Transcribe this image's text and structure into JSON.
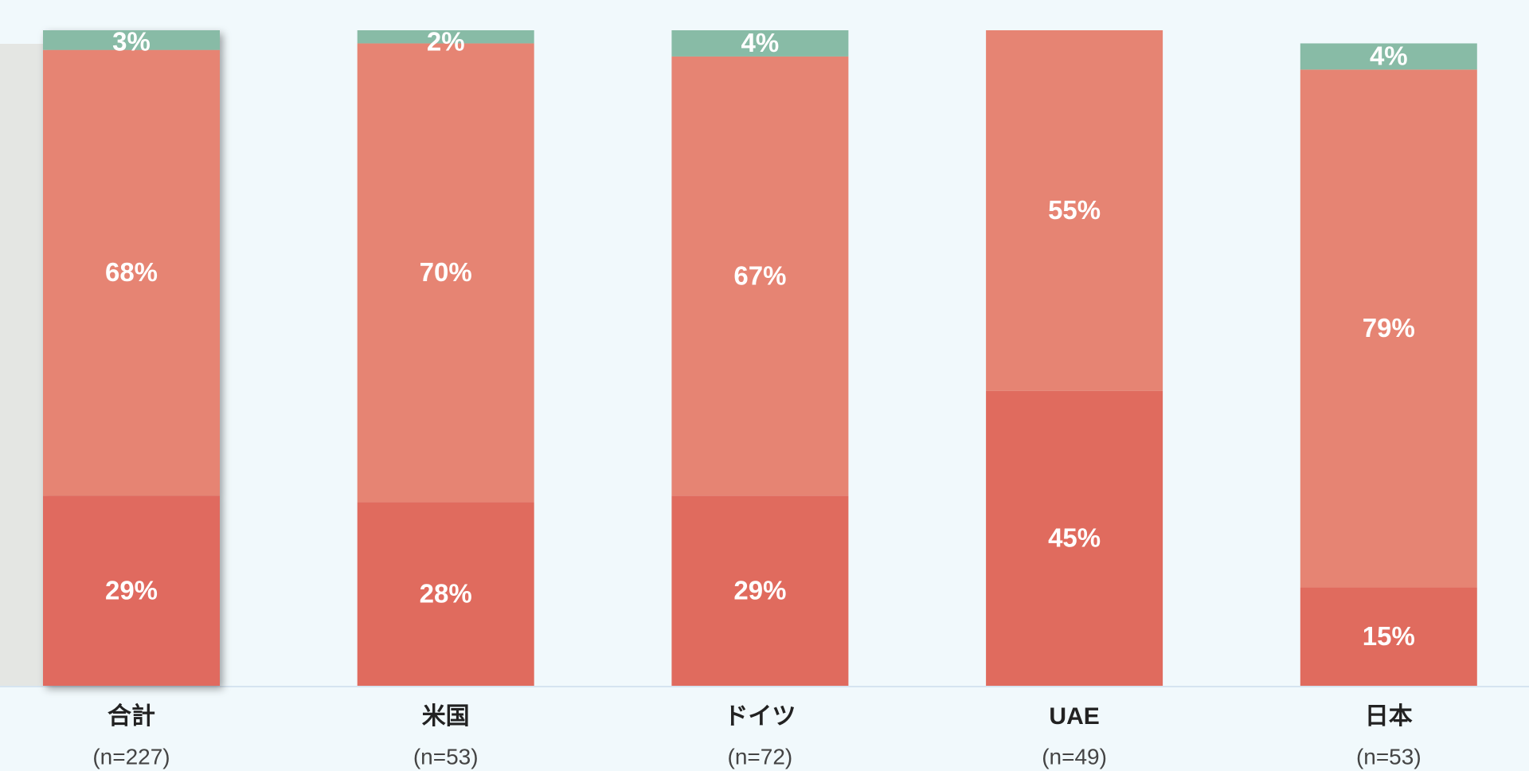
{
  "chart_data": {
    "type": "stacked_bar",
    "categories": [
      "合計",
      "米国",
      "ドイツ",
      "UAE",
      "日本"
    ],
    "category_counts": [
      "(n=227)",
      "(n=53)",
      "(n=72)",
      "(n=49)",
      "(n=53)"
    ],
    "series": [
      {
        "color": "#e06b5e",
        "values": [
          29,
          28,
          29,
          45,
          15
        ],
        "value_labels": [
          "29%",
          "28%",
          "29%",
          "45%",
          "15%"
        ]
      },
      {
        "color": "#e68473",
        "values": [
          68,
          70,
          67,
          55,
          79
        ],
        "value_labels": [
          "68%",
          "70%",
          "67%",
          "55%",
          "79%"
        ]
      },
      {
        "color": "#88bba6",
        "values": [
          3,
          2,
          4,
          null,
          4
        ],
        "value_labels": [
          "3%",
          "2%",
          "4%",
          null,
          "4%"
        ]
      }
    ],
    "ylim": [
      0,
      100
    ]
  }
}
